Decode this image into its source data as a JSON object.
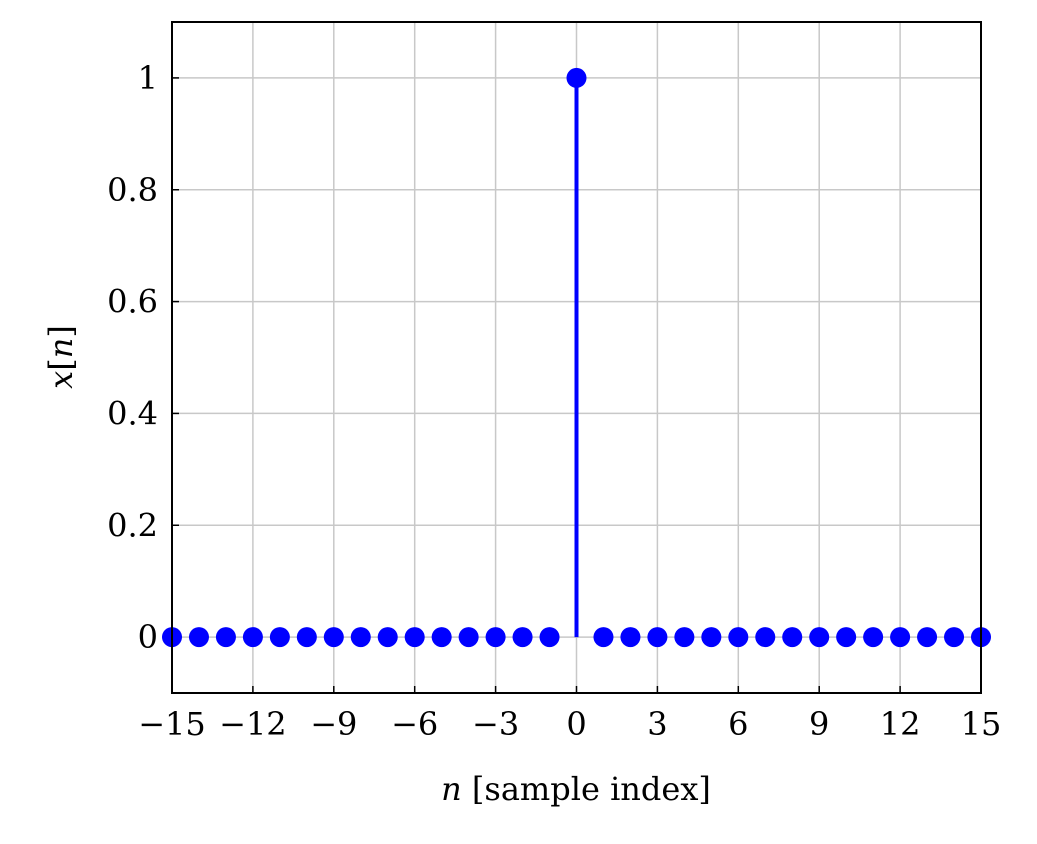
{
  "chart_data": {
    "type": "scatter",
    "style": "stem",
    "xlabel_var": "n",
    "xlabel_rest": " [sample index]",
    "ylabel_var": "x",
    "ylabel_open": "[",
    "ylabel_idx": "n",
    "ylabel_close": "]",
    "xlim": [
      -15,
      15
    ],
    "ylim": [
      -0.1,
      1.1
    ],
    "xticks": [
      -15,
      -12,
      -9,
      -6,
      -3,
      0,
      3,
      6,
      9,
      12,
      15
    ],
    "xtick_labels": [
      "−15",
      "−12",
      "−9",
      "−6",
      "−3",
      "0",
      "3",
      "6",
      "9",
      "12",
      "15"
    ],
    "yticks": [
      0,
      0.2,
      0.4,
      0.6,
      0.8,
      1
    ],
    "ytick_labels": [
      "0",
      "0.2",
      "0.4",
      "0.6",
      "0.8",
      "1"
    ],
    "grid": true,
    "series_color": "#0000ff",
    "grid_color": "#c8c8c8",
    "x": [
      -15,
      -14,
      -13,
      -12,
      -11,
      -10,
      -9,
      -8,
      -7,
      -6,
      -5,
      -4,
      -3,
      -2,
      -1,
      0,
      1,
      2,
      3,
      4,
      5,
      6,
      7,
      8,
      9,
      10,
      11,
      12,
      13,
      14,
      15
    ],
    "y": [
      0,
      0,
      0,
      0,
      0,
      0,
      0,
      0,
      0,
      0,
      0,
      0,
      0,
      0,
      0,
      1,
      0,
      0,
      0,
      0,
      0,
      0,
      0,
      0,
      0,
      0,
      0,
      0,
      0,
      0,
      0
    ]
  }
}
